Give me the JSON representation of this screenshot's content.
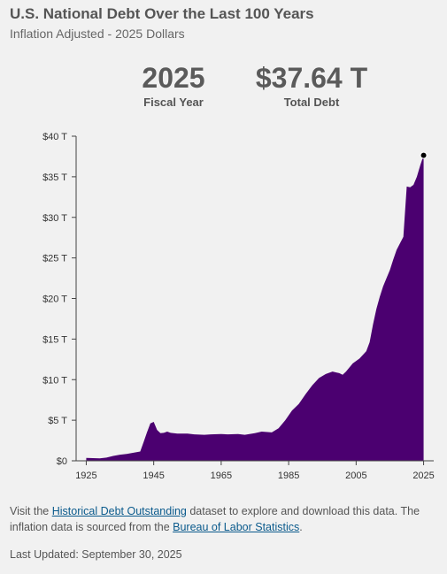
{
  "header": {
    "title": "U.S. National Debt Over the Last 100 Years",
    "subtitle": "Inflation Adjusted - 2025 Dollars"
  },
  "stats": {
    "year_value": "2025",
    "year_label": "Fiscal Year",
    "debt_value": "$37.64 T",
    "debt_label": "Total Debt"
  },
  "footer": {
    "text_1": "Visit the ",
    "link_1": "Historical Debt Outstanding",
    "text_2": " dataset to explore and download this data. The inflation data is sourced from the ",
    "link_2": "Bureau of Labor Statistics",
    "text_3": ".",
    "updated": "Last Updated: September 30, 2025"
  },
  "colors": {
    "area": "#4b0070",
    "axis": "#444444",
    "link": "#0a5a8c"
  },
  "chart_data": {
    "type": "area",
    "title": "U.S. National Debt Over the Last 100 Years",
    "ylim": [
      0,
      40
    ],
    "xlim": [
      1922,
      2028
    ],
    "yticks": [
      0,
      5,
      10,
      15,
      20,
      25,
      30,
      35,
      40
    ],
    "ytick_labels": [
      "$0",
      "$5 T",
      "$10 T",
      "$15 T",
      "$20 T",
      "$25 T",
      "$30 T",
      "$35 T",
      "$40 T"
    ],
    "xticks": [
      1925,
      1945,
      1965,
      1985,
      2005,
      2025
    ],
    "xtick_labels": [
      "1925",
      "1945",
      "1965",
      "1985",
      "2005",
      "2025"
    ],
    "highlight_point": {
      "x": 2025,
      "y": 37.64
    },
    "series": [
      {
        "x": [
          1925,
          1927,
          1929,
          1931,
          1933,
          1935,
          1937,
          1939,
          1941,
          1942,
          1943,
          1944,
          1945,
          1946,
          1947,
          1948,
          1949,
          1950,
          1952,
          1955,
          1957,
          1960,
          1962,
          1965,
          1967,
          1970,
          1972,
          1975,
          1977,
          1980,
          1982,
          1984,
          1986,
          1988,
          1990,
          1992,
          1994,
          1996,
          1998,
          2000,
          2001,
          2002,
          2004,
          2006,
          2008,
          2009,
          2010,
          2011,
          2012,
          2013,
          2014,
          2015,
          2016,
          2017,
          2018,
          2019,
          2020,
          2021,
          2022,
          2023,
          2024,
          2025
        ],
        "y": [
          0.35,
          0.33,
          0.3,
          0.4,
          0.6,
          0.75,
          0.85,
          1.0,
          1.15,
          2.3,
          3.5,
          4.6,
          4.8,
          3.8,
          3.4,
          3.45,
          3.6,
          3.45,
          3.35,
          3.35,
          3.25,
          3.2,
          3.25,
          3.3,
          3.25,
          3.3,
          3.2,
          3.4,
          3.6,
          3.5,
          4.0,
          5.0,
          6.2,
          7.0,
          8.2,
          9.3,
          10.2,
          10.7,
          11.0,
          10.8,
          10.6,
          11.0,
          12.0,
          12.6,
          13.5,
          14.6,
          16.8,
          18.7,
          20.2,
          21.5,
          22.5,
          23.5,
          24.8,
          26.0,
          26.8,
          27.6,
          33.8,
          33.7,
          34.0,
          35.0,
          36.4,
          37.64
        ]
      }
    ]
  }
}
